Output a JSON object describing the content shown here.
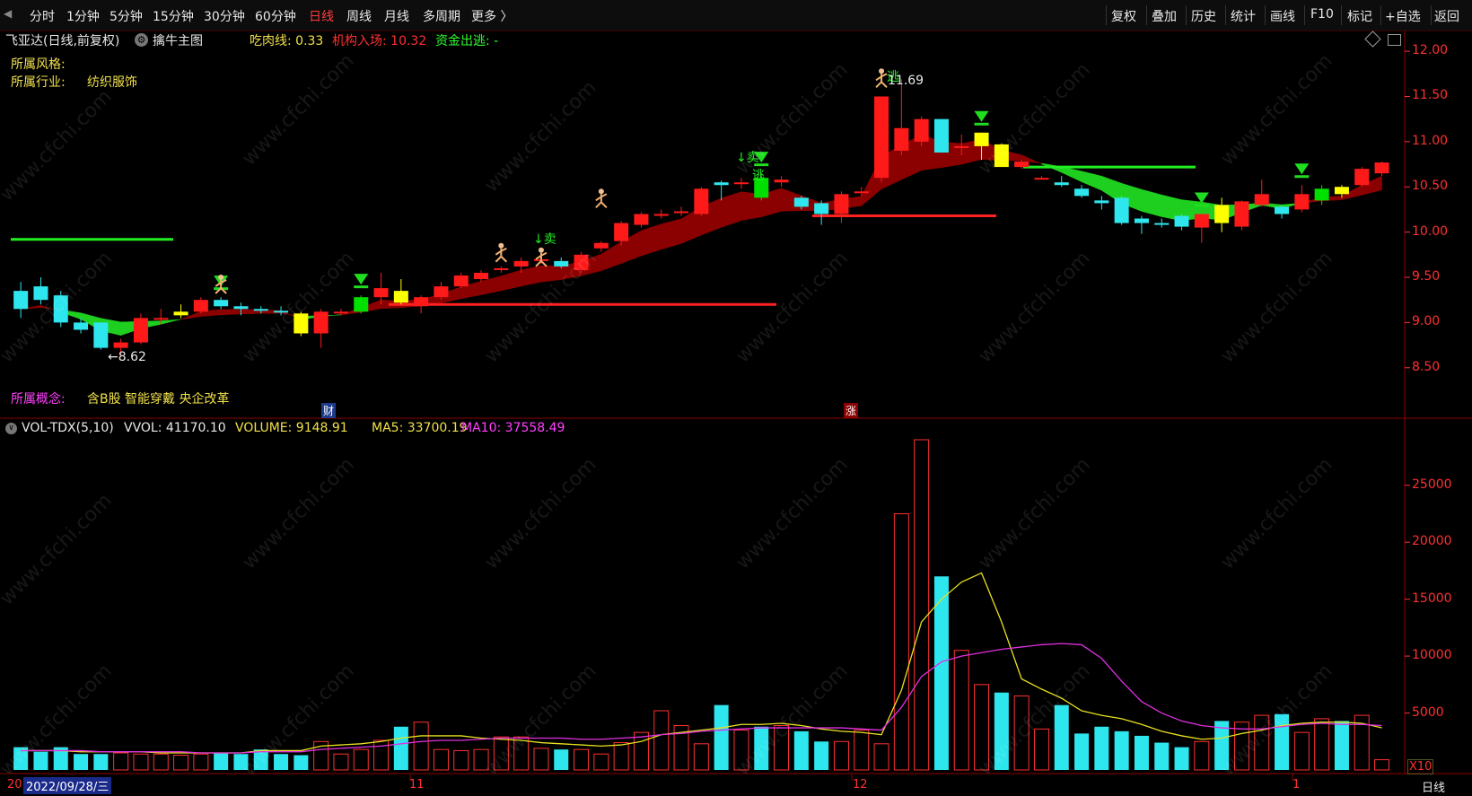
{
  "toolbar": {
    "left_icon": "◀",
    "periods": [
      "分时",
      "1分钟",
      "5分钟",
      "15分钟",
      "30分钟",
      "60分钟",
      "日线",
      "周线",
      "月线",
      "多周期",
      "更多 〉"
    ],
    "active_period": "日线",
    "right": [
      "复权",
      "叠加",
      "历史",
      "统计",
      "画线",
      "F10",
      "标记",
      "+自选",
      "返回"
    ]
  },
  "main": {
    "title": "飞亚达(日线,前复权)",
    "indicator_name": "擒牛主图",
    "chirou_label": "吃肉线: 0.33",
    "jigou_label": "机构入场: 10.32",
    "zijin_label": "资金出逃: -",
    "style_label": "所属风格:",
    "industry_label": "所属行业:",
    "industry_value": "纺织服饰",
    "concept_label": "所属概念:",
    "concept_value": "含B股 智能穿戴 央企改革",
    "low_label": "←8.62",
    "high_label": "11.69",
    "sell_label": "↓卖",
    "escape_label": "逃",
    "marker_cai": "财",
    "marker_zhang": "涨",
    "y_ticks": [
      "12.00",
      "11.50",
      "11.00",
      "10.50",
      "10.00",
      "9.50",
      "9.00",
      "8.50"
    ]
  },
  "volume": {
    "title": "VOL-TDX(5,10)",
    "vvol": "VVOL: 41170.10",
    "volume": "VOLUME: 9148.91",
    "ma5": "MA5: 33700.19",
    "ma10": "MA10: 37558.49",
    "y_ticks": [
      "25000",
      "20000",
      "15000",
      "10000",
      "5000"
    ],
    "unit": "X10"
  },
  "xaxis": {
    "start_label": "20",
    "date_cursor": "2022/09/28/三",
    "months": [
      "11",
      "12",
      "1"
    ],
    "period_button": "日线"
  },
  "watermark": "www.cfchi.com",
  "colors": {
    "up": "#ff1a1a",
    "down": "#2ee6ee",
    "highlight": "#ffff00",
    "green": "#00e000",
    "ribbon_red": "#8b0000",
    "ribbon_green": "#1fcf1f"
  },
  "chart_data": {
    "type": "candlestick",
    "ohlc": [
      [
        9.35,
        9.45,
        9.05,
        9.15
      ],
      [
        9.4,
        9.5,
        9.2,
        9.25
      ],
      [
        9.3,
        9.35,
        8.95,
        9.0
      ],
      [
        9.0,
        9.05,
        8.88,
        8.92
      ],
      [
        9.0,
        9.0,
        8.7,
        8.72
      ],
      [
        8.72,
        8.82,
        8.62,
        8.78
      ],
      [
        8.78,
        9.1,
        8.76,
        9.05
      ],
      [
        9.05,
        9.15,
        8.98,
        9.05
      ],
      [
        9.08,
        9.2,
        9.05,
        9.12
      ],
      [
        9.12,
        9.28,
        9.1,
        9.25
      ],
      [
        9.25,
        9.28,
        9.15,
        9.18
      ],
      [
        9.18,
        9.22,
        9.08,
        9.15
      ],
      [
        9.15,
        9.18,
        9.1,
        9.13
      ],
      [
        9.13,
        9.18,
        9.08,
        9.12
      ],
      [
        9.1,
        9.12,
        8.85,
        8.88
      ],
      [
        8.88,
        9.15,
        8.72,
        9.12
      ],
      [
        9.1,
        9.15,
        9.08,
        9.12
      ],
      [
        9.12,
        9.3,
        9.1,
        9.28
      ],
      [
        9.28,
        9.55,
        9.2,
        9.38
      ],
      [
        9.35,
        9.48,
        9.2,
        9.22
      ],
      [
        9.18,
        9.3,
        9.1,
        9.28
      ],
      [
        9.28,
        9.45,
        9.25,
        9.4
      ],
      [
        9.4,
        9.55,
        9.38,
        9.52
      ],
      [
        9.48,
        9.58,
        9.45,
        9.55
      ],
      [
        9.58,
        9.62,
        9.55,
        9.6
      ],
      [
        9.62,
        9.72,
        9.55,
        9.68
      ],
      [
        9.68,
        9.72,
        9.65,
        9.7
      ],
      [
        9.68,
        9.72,
        9.6,
        9.62
      ],
      [
        9.58,
        9.78,
        9.55,
        9.75
      ],
      [
        9.82,
        9.9,
        9.78,
        9.88
      ],
      [
        9.9,
        10.12,
        9.85,
        10.1
      ],
      [
        10.08,
        10.22,
        10.05,
        10.2
      ],
      [
        10.18,
        10.25,
        10.15,
        10.2
      ],
      [
        10.22,
        10.28,
        10.18,
        10.23
      ],
      [
        10.2,
        10.5,
        10.18,
        10.48
      ],
      [
        10.55,
        10.57,
        10.35,
        10.52
      ],
      [
        10.55,
        10.6,
        10.48,
        10.55
      ],
      [
        10.6,
        10.65,
        10.35,
        10.38
      ],
      [
        10.55,
        10.62,
        10.5,
        10.58
      ],
      [
        10.38,
        10.4,
        10.25,
        10.28
      ],
      [
        10.32,
        10.35,
        10.08,
        10.2
      ],
      [
        10.2,
        10.45,
        10.1,
        10.42
      ],
      [
        10.45,
        10.5,
        10.4,
        10.45
      ],
      [
        10.6,
        11.5,
        10.55,
        11.5
      ],
      [
        10.9,
        11.69,
        10.85,
        11.15
      ],
      [
        11.0,
        11.28,
        10.95,
        11.25
      ],
      [
        11.25,
        11.25,
        10.88,
        10.88
      ],
      [
        10.95,
        11.08,
        10.85,
        10.95
      ],
      [
        10.95,
        11.1,
        10.8,
        11.1
      ],
      [
        10.97,
        10.98,
        10.72,
        10.72
      ],
      [
        10.72,
        10.8,
        10.7,
        10.78
      ],
      [
        10.6,
        10.62,
        10.58,
        10.6
      ],
      [
        10.55,
        10.62,
        10.5,
        10.52
      ],
      [
        10.48,
        10.52,
        10.38,
        10.4
      ],
      [
        10.35,
        10.4,
        10.25,
        10.32
      ],
      [
        10.38,
        10.4,
        10.08,
        10.1
      ],
      [
        10.15,
        10.18,
        9.98,
        10.1
      ],
      [
        10.1,
        10.15,
        10.05,
        10.08
      ],
      [
        10.18,
        10.2,
        10.02,
        10.06
      ],
      [
        10.05,
        10.2,
        9.88,
        10.2
      ],
      [
        10.3,
        10.38,
        10.0,
        10.1
      ],
      [
        10.06,
        10.35,
        10.02,
        10.34
      ],
      [
        10.3,
        10.58,
        10.28,
        10.42
      ],
      [
        10.28,
        10.3,
        10.15,
        10.2
      ],
      [
        10.25,
        10.52,
        10.22,
        10.42
      ],
      [
        10.35,
        10.52,
        10.3,
        10.48
      ],
      [
        10.5,
        10.52,
        10.38,
        10.42
      ],
      [
        10.52,
        10.72,
        10.5,
        10.7
      ],
      [
        10.65,
        10.78,
        10.62,
        10.77
      ]
    ],
    "volume": [
      2000,
      1600,
      2000,
      1400,
      1400,
      1500,
      1400,
      1400,
      1300,
      1400,
      1500,
      1400,
      1800,
      1400,
      1300,
      2500,
      1400,
      1800,
      2600,
      3800,
      4200,
      1800,
      1700,
      1800,
      2900,
      2900,
      1900,
      1800,
      1800,
      1400,
      2400,
      3300,
      5200,
      3900,
      2300,
      5700,
      3500,
      3800,
      3900,
      3400,
      2500,
      2500,
      3500,
      2300,
      22500,
      29000,
      17000,
      10500,
      7500,
      6800,
      6500,
      3600,
      5700,
      3200,
      3800,
      3400,
      3000,
      2400,
      2000,
      2500,
      4300,
      4200,
      4800,
      4900,
      3300,
      4500,
      4300,
      4800,
      900
    ],
    "ma5": [
      1700,
      1700,
      1700,
      1600,
      1600,
      1600,
      1600,
      1500,
      1500,
      1500,
      1500,
      1500,
      1700,
      1700,
      1700,
      2100,
      2200,
      2300,
      2500,
      2800,
      3000,
      3000,
      3000,
      2800,
      2700,
      2600,
      2400,
      2300,
      2200,
      2100,
      2200,
      2500,
      3100,
      3300,
      3500,
      3700,
      4000,
      4000,
      4100,
      3900,
      3600,
      3400,
      3300,
      3100,
      7000,
      13000,
      15000,
      16500,
      17300,
      13000,
      8000,
      7100,
      6300,
      5200,
      4800,
      4500,
      4000,
      3400,
      3000,
      2700,
      2800,
      3200,
      3500,
      3900,
      4100,
      4200,
      4200,
      4100,
      3700
    ],
    "ma10": [
      1700,
      1700,
      1700,
      1700,
      1600,
      1600,
      1600,
      1600,
      1600,
      1500,
      1500,
      1500,
      1600,
      1600,
      1600,
      1800,
      1900,
      2000,
      2100,
      2300,
      2500,
      2600,
      2600,
      2700,
      2800,
      2800,
      2800,
      2800,
      2700,
      2700,
      2800,
      2900,
      3100,
      3200,
      3400,
      3500,
      3600,
      3700,
      3700,
      3700,
      3700,
      3700,
      3600,
      3500,
      5500,
      8200,
      9500,
      10000,
      10300,
      10600,
      10800,
      11000,
      11100,
      11000,
      9800,
      7800,
      6000,
      5000,
      4300,
      3900,
      3700,
      3600,
      3600,
      3800,
      4000,
      4100,
      4000,
      4000,
      3900
    ],
    "y_range": [
      8.2,
      12.15
    ],
    "volume_range": [
      0,
      29000
    ]
  }
}
